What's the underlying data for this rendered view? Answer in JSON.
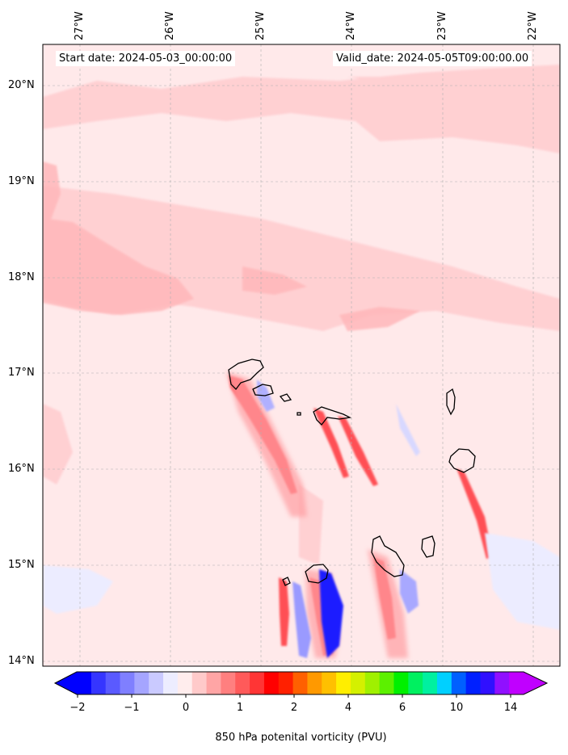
{
  "header": {
    "start_date": "Start date: 2024-05-03_00:00:00",
    "valid_date": "Valid_date: 2024-05-05T09:00:00.00"
  },
  "map": {
    "longitude_labels": [
      "27°W",
      "26°W",
      "25°W",
      "24°W",
      "23°W",
      "22°W"
    ],
    "latitude_labels": [
      "20°N",
      "19°N",
      "18°N",
      "17°N",
      "16°N",
      "15°N",
      "14°N"
    ],
    "extent": {
      "lon_min": -27.35,
      "lon_max": -21.65,
      "lat_min": 13.95,
      "lat_max": 20.42
    },
    "gridlines": true,
    "background_color": "#ffe9ea"
  },
  "colorbar": {
    "label": "850 hPa potenital vorticity (PVU)",
    "tick_labels": [
      "−2",
      "−1",
      "0",
      "1",
      "2",
      "4",
      "6",
      "10",
      "14"
    ],
    "colors": [
      "#0000ff",
      "#3535ff",
      "#5a5aff",
      "#7f7fff",
      "#a5a5ff",
      "#cacaff",
      "#ededff",
      "#ffeded",
      "#ffcaca",
      "#ffa5a5",
      "#ff7f7f",
      "#ff5a5a",
      "#ff3535",
      "#ff0000",
      "#ff2000",
      "#ff6000",
      "#ff9900",
      "#ffc000",
      "#ffee00",
      "#d4f000",
      "#a0f000",
      "#5cf000",
      "#00f000",
      "#00f060",
      "#00f0a0",
      "#00d0ff",
      "#0060ff",
      "#0020ff",
      "#3010ff",
      "#9010ff",
      "#c000ff"
    ],
    "extend": "both"
  }
}
